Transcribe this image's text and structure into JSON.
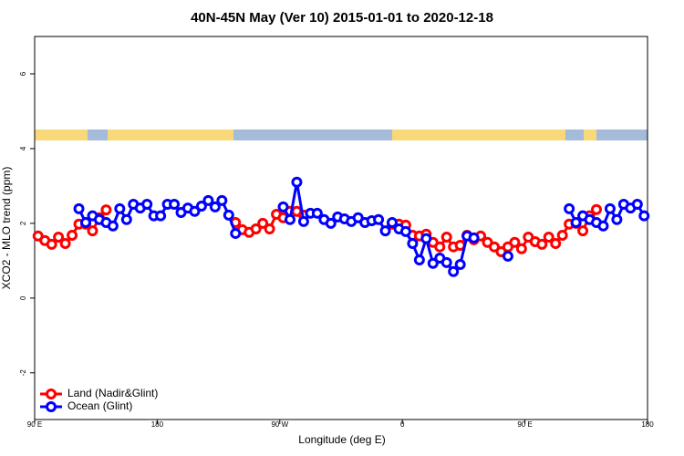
{
  "chart_data": {
    "type": "line",
    "title": "40N-45N May (Ver 10)   2015-01-01 to 2020-12-18",
    "x_label": "Longitude (deg E)",
    "y_label": "XCO2 - MLO trend (ppm)",
    "xlim": [
      90,
      540
    ],
    "xticks": [
      {
        "value": 90,
        "label": "90 E"
      },
      180,
      {
        "value": 270,
        "label": "90 W"
      },
      {
        "value": 360,
        "label": "0"
      },
      {
        "value": 450,
        "label": "90 E"
      },
      {
        "value": 540,
        "label": "180"
      }
    ],
    "ylim": [
      -3.25,
      7
    ],
    "yticks": [
      -2,
      0,
      2,
      4,
      6
    ],
    "legend": "bottom-left",
    "series": [
      {
        "name": "Land (Nadir&Glint)",
        "color": "#ff0000",
        "x": [
          92.5,
          97.5,
          102.5,
          107.5,
          112.5,
          117.5,
          122.5,
          127.5,
          132.5,
          137.5,
          142.5,
          null,
          237.5,
          242.5,
          247.5,
          252.5,
          257.5,
          262.5,
          267.5,
          272.5,
          277.5,
          282.5,
          287.5,
          null,
          352.5,
          357.5,
          362.5,
          367.5,
          372.5,
          377.5,
          382.5,
          387.5,
          392.5,
          397.5,
          402.5,
          407.5,
          412.5,
          417.5,
          422.5,
          427.5,
          432.5,
          437.5,
          442.5,
          447.5,
          452.5,
          457.5,
          462.5,
          467.5,
          472.5,
          477.5,
          482.5,
          487.5,
          492.5,
          497.5,
          502.5
        ],
        "values": [
          1.66,
          1.54,
          1.44,
          1.63,
          1.46,
          1.68,
          1.98,
          1.98,
          1.8,
          2.15,
          2.36,
          null,
          2.02,
          1.83,
          1.76,
          1.85,
          2.0,
          1.85,
          2.24,
          2.15,
          2.32,
          2.32,
          2.22,
          null,
          1.98,
          1.98,
          1.95,
          1.68,
          1.66,
          1.71,
          1.49,
          1.37,
          1.63,
          1.37,
          1.41,
          1.68,
          1.56,
          1.66,
          1.49,
          1.37,
          1.24,
          1.37,
          1.49,
          1.32,
          1.63,
          1.51,
          1.44,
          1.63,
          1.46,
          1.68,
          1.98,
          2.0,
          1.8,
          2.2,
          2.37
        ]
      },
      {
        "name": "Ocean (Glint)",
        "color": "#0000ff",
        "x": [
          122.5,
          127.5,
          132.5,
          137.5,
          142.5,
          147.5,
          152.5,
          157.5,
          162.5,
          167.5,
          172.5,
          177.5,
          182.5,
          187.5,
          192.5,
          197.5,
          202.5,
          207.5,
          212.5,
          217.5,
          222.5,
          227.5,
          232.5,
          237.5,
          null,
          272.5,
          277.5,
          282.5,
          287.5,
          292.5,
          297.5,
          302.5,
          307.5,
          312.5,
          317.5,
          322.5,
          327.5,
          332.5,
          337.5,
          342.5,
          347.5,
          352.5,
          357.5,
          362.5,
          367.5,
          372.5,
          377.5,
          382.5,
          387.5,
          392.5,
          397.5,
          402.5,
          407.5,
          412.5,
          null,
          437.5,
          null,
          482.5,
          487.5,
          492.5,
          497.5,
          502.5,
          507.5,
          512.5,
          517.5,
          522.5,
          527.5,
          532.5,
          537.5
        ],
        "values": [
          2.39,
          2.02,
          2.2,
          2.1,
          2.02,
          1.93,
          2.39,
          2.1,
          2.51,
          2.41,
          2.51,
          2.2,
          2.2,
          2.51,
          2.51,
          2.29,
          2.41,
          2.32,
          2.46,
          2.61,
          2.44,
          2.61,
          2.22,
          1.73,
          null,
          2.44,
          2.1,
          3.1,
          2.05,
          2.27,
          2.27,
          2.1,
          2.0,
          2.17,
          2.12,
          2.05,
          2.15,
          2.02,
          2.07,
          2.1,
          1.8,
          2.02,
          1.85,
          1.78,
          1.46,
          1.02,
          1.59,
          0.93,
          1.07,
          0.95,
          0.71,
          0.9,
          1.66,
          1.61,
          null,
          1.12,
          null,
          2.39,
          2.02,
          2.2,
          2.1,
          2.02,
          1.93,
          2.39,
          2.1,
          2.51,
          2.41,
          2.51,
          2.2
        ]
      }
    ]
  }
}
